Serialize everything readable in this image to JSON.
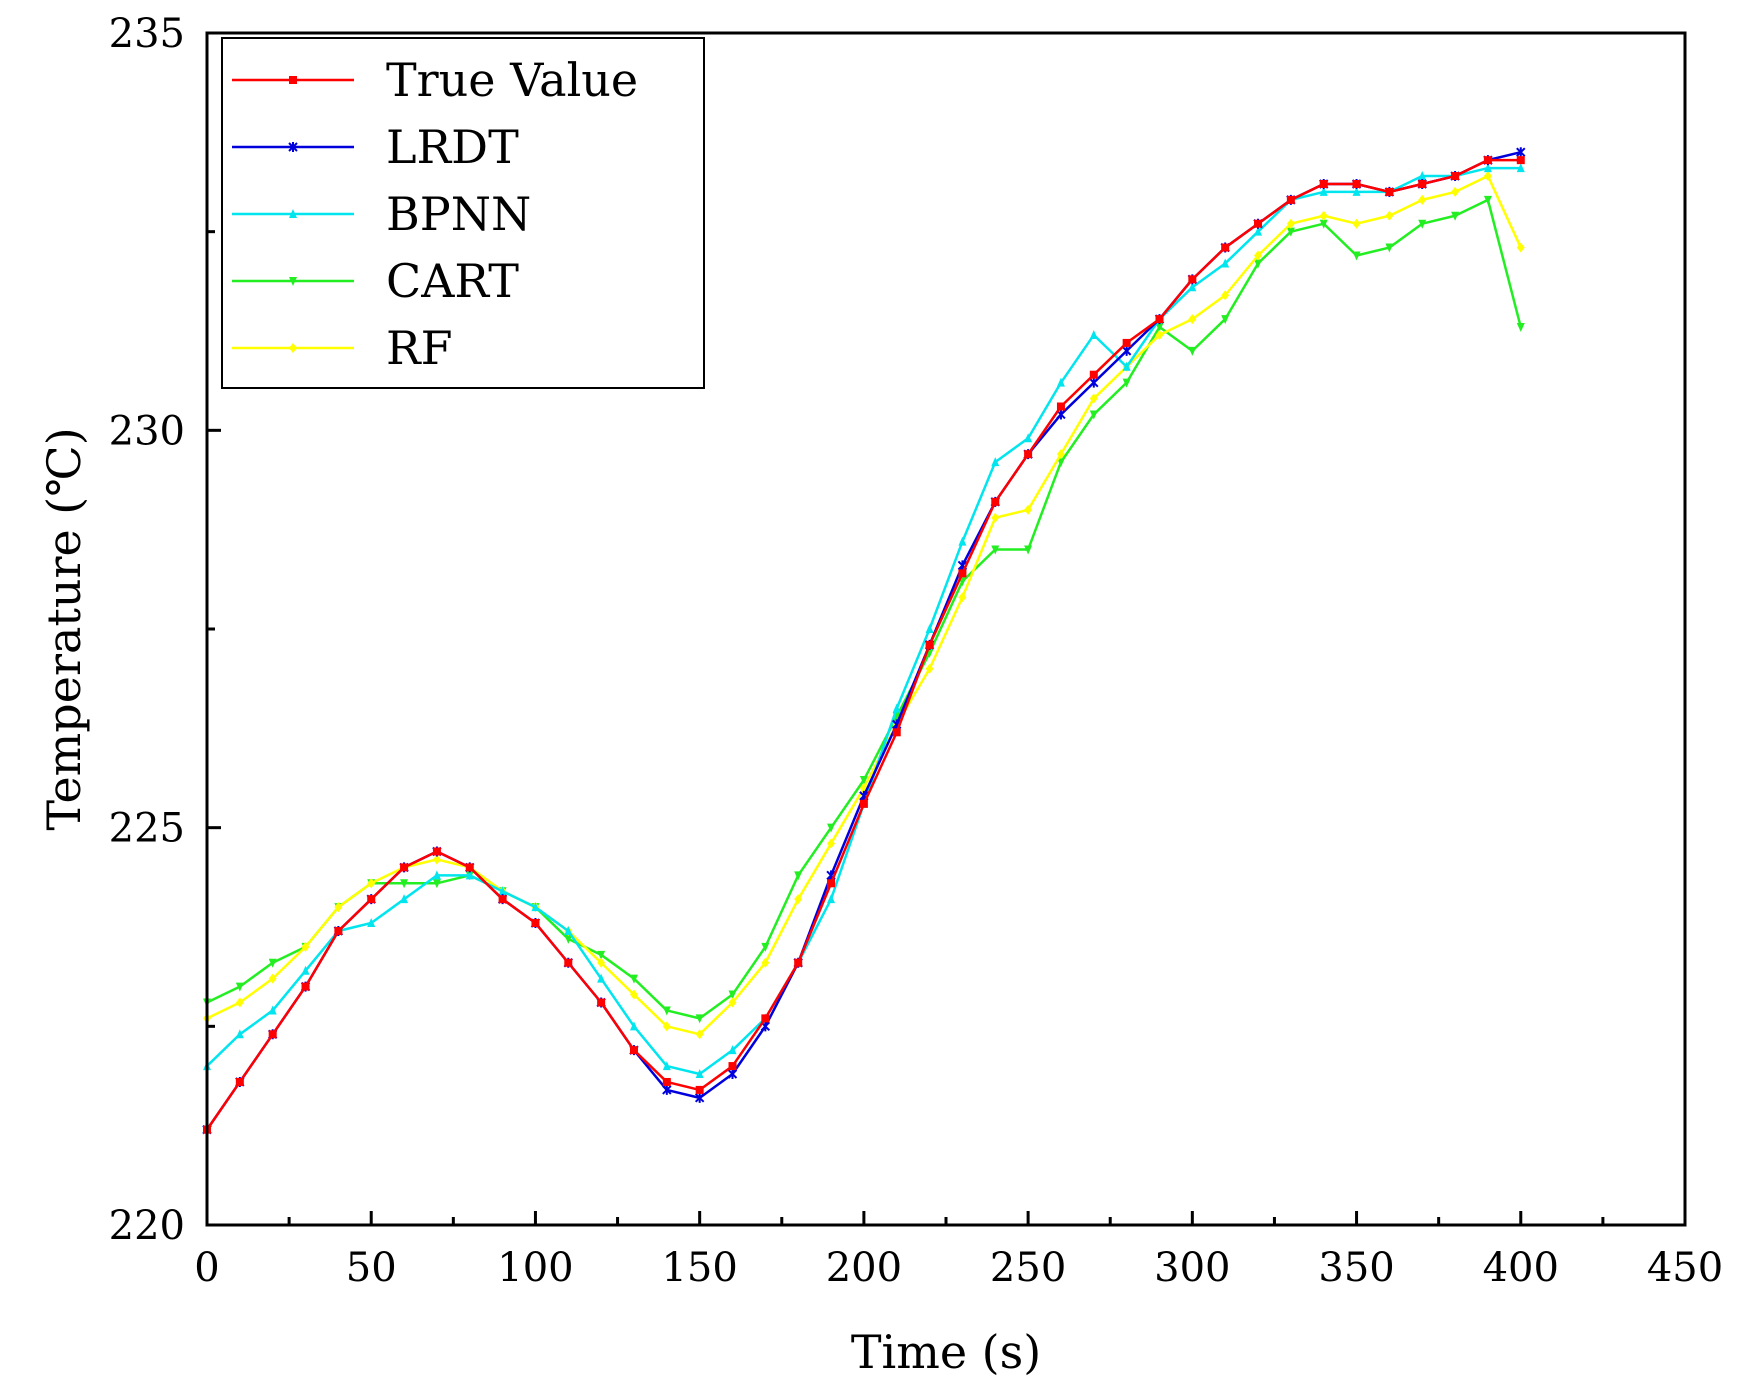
{
  "chart_data": {
    "type": "line",
    "title": "",
    "xlabel": "Time (s)",
    "ylabel": "Temperature (℃)",
    "xlim": [
      0,
      450
    ],
    "ylim": [
      220,
      235
    ],
    "x_ticks": [
      "0",
      "50",
      "100",
      "150",
      "200",
      "250",
      "300",
      "350",
      "400",
      "450"
    ],
    "y_ticks": [
      "220",
      "225",
      "230",
      "235"
    ],
    "legend_position": "top-left",
    "grid": false,
    "x": [
      0,
      10,
      20,
      30,
      40,
      50,
      60,
      70,
      80,
      90,
      100,
      110,
      120,
      130,
      140,
      150,
      160,
      170,
      180,
      190,
      200,
      210,
      220,
      230,
      240,
      250,
      260,
      270,
      280,
      290,
      300,
      310,
      320,
      330,
      340,
      350,
      360,
      370,
      380,
      390,
      400
    ],
    "series": [
      {
        "name": "True Value",
        "color": "#ff0000",
        "marker": "square",
        "values": [
          221.2,
          221.8,
          222.4,
          223.0,
          223.7,
          224.1,
          224.5,
          224.7,
          224.5,
          224.1,
          223.8,
          223.3,
          222.8,
          222.2,
          221.8,
          221.7,
          222.0,
          222.6,
          223.3,
          224.3,
          225.3,
          226.2,
          227.3,
          228.2,
          229.1,
          229.7,
          230.3,
          230.7,
          231.1,
          231.4,
          231.9,
          232.3,
          232.6,
          232.9,
          233.1,
          233.1,
          233.0,
          233.1,
          233.2,
          233.4,
          233.4
        ]
      },
      {
        "name": "LRDT",
        "color": "#0000dd",
        "marker": "star",
        "values": [
          221.2,
          221.8,
          222.4,
          223.0,
          223.7,
          224.1,
          224.5,
          224.7,
          224.5,
          224.1,
          223.8,
          223.3,
          222.8,
          222.2,
          221.7,
          221.6,
          221.9,
          222.5,
          223.3,
          224.4,
          225.4,
          226.3,
          227.3,
          228.3,
          229.1,
          229.7,
          230.2,
          230.6,
          231.0,
          231.4,
          231.9,
          232.3,
          232.6,
          232.9,
          233.1,
          233.1,
          233.0,
          233.1,
          233.2,
          233.4,
          233.5
        ]
      },
      {
        "name": "BPNN",
        "color": "#00e5ee",
        "marker": "triangle-up",
        "values": [
          222.0,
          222.4,
          222.7,
          223.2,
          223.7,
          223.8,
          224.1,
          224.4,
          224.4,
          224.2,
          224.0,
          223.7,
          223.1,
          222.5,
          222.0,
          221.9,
          222.2,
          222.6,
          223.3,
          224.1,
          225.3,
          226.5,
          227.5,
          228.6,
          229.6,
          229.9,
          230.6,
          231.2,
          230.8,
          231.4,
          231.8,
          232.1,
          232.5,
          232.9,
          233.0,
          233.0,
          233.0,
          233.2,
          233.2,
          233.3,
          233.3
        ]
      },
      {
        "name": "CART",
        "color": "#22ee22",
        "marker": "triangle-down",
        "values": [
          222.8,
          223.0,
          223.3,
          223.5,
          224.0,
          224.3,
          224.3,
          224.3,
          224.4,
          224.2,
          224.0,
          223.6,
          223.4,
          223.1,
          222.7,
          222.6,
          222.9,
          223.5,
          224.4,
          225.0,
          225.6,
          226.4,
          227.2,
          228.1,
          228.5,
          228.5,
          229.6,
          230.2,
          230.6,
          231.3,
          231.0,
          231.4,
          232.1,
          232.5,
          232.6,
          232.2,
          232.3,
          232.6,
          232.7,
          232.9,
          231.3
        ]
      },
      {
        "name": "RF",
        "color": "#ffff00",
        "marker": "diamond",
        "values": [
          222.6,
          222.8,
          223.1,
          223.5,
          224.0,
          224.3,
          224.5,
          224.6,
          224.5,
          224.2,
          224.0,
          223.7,
          223.3,
          222.9,
          222.5,
          222.4,
          222.8,
          223.3,
          224.1,
          224.8,
          225.5,
          226.3,
          227.0,
          227.9,
          228.9,
          229.0,
          229.7,
          230.4,
          230.8,
          231.2,
          231.4,
          231.7,
          232.2,
          232.6,
          232.7,
          232.6,
          232.7,
          232.9,
          233.0,
          233.2,
          232.3
        ]
      }
    ]
  }
}
